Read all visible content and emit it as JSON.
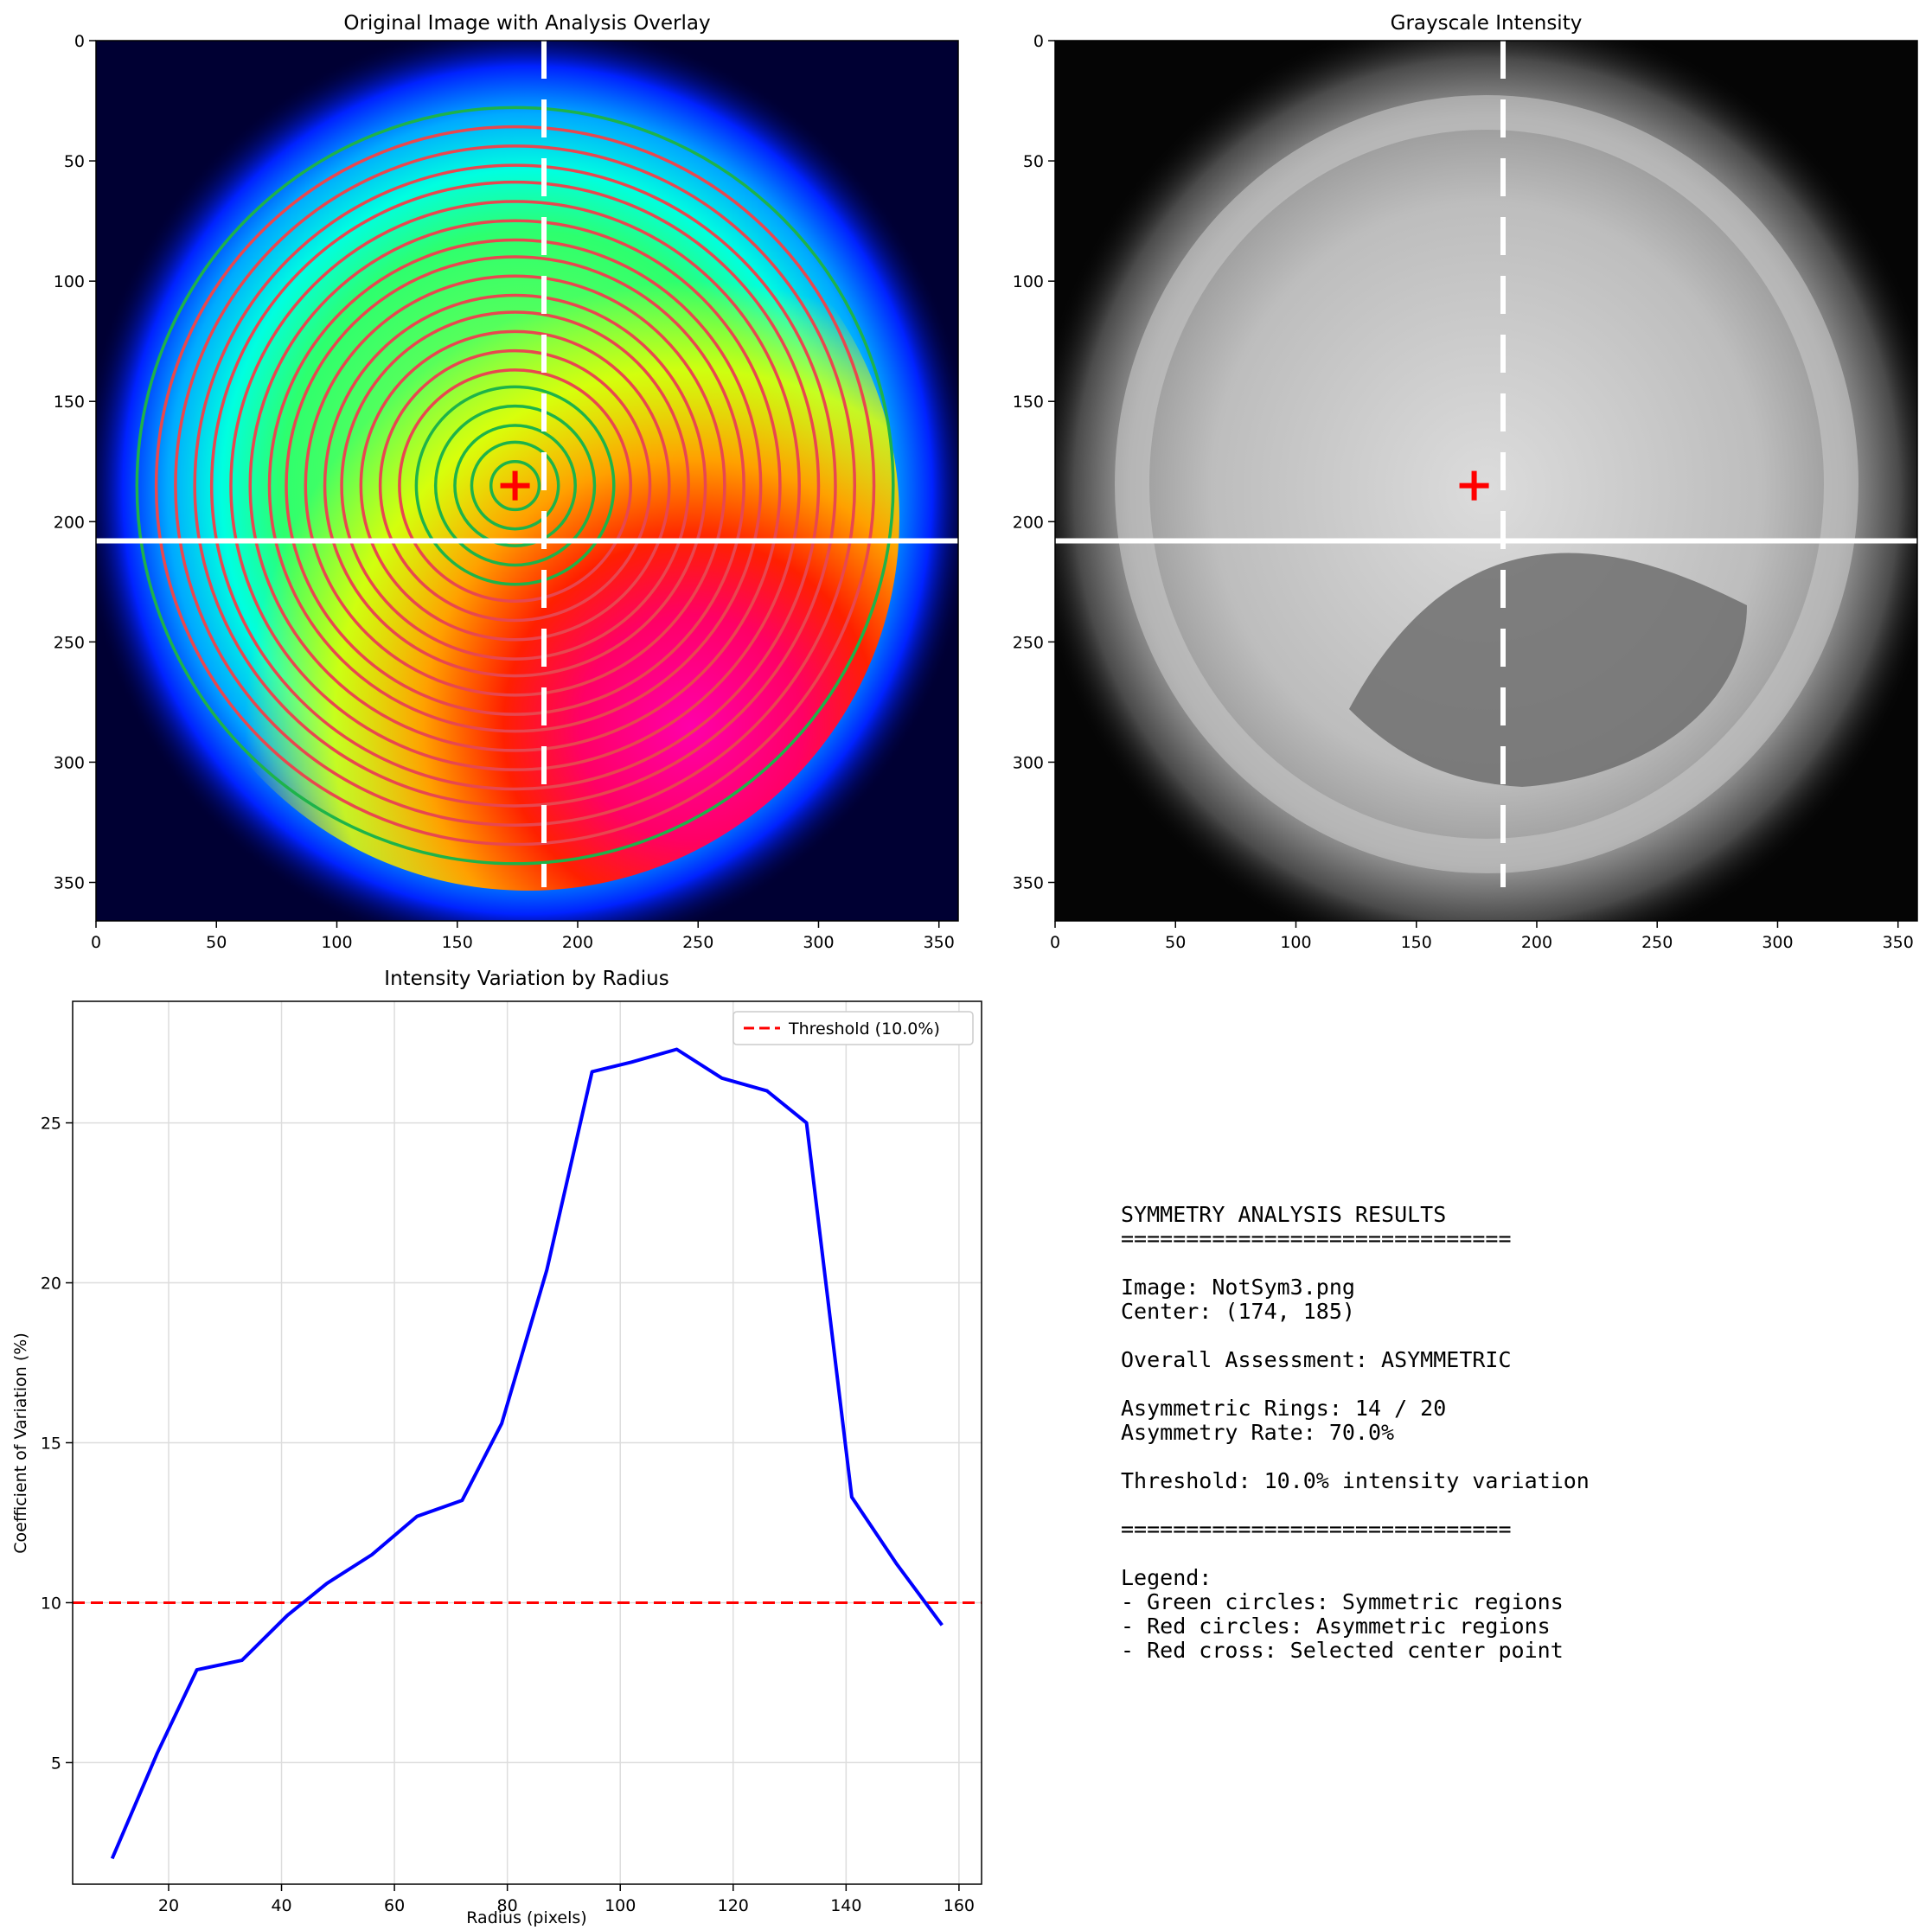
{
  "panels": {
    "overlay": {
      "title": "Original Image with Analysis Overlay",
      "x_ticks": [
        0,
        50,
        100,
        150,
        200,
        250,
        300,
        350
      ],
      "y_ticks": [
        0,
        50,
        100,
        150,
        200,
        250,
        300,
        350
      ],
      "xlim": [
        0,
        358
      ],
      "ylim": [
        366,
        0
      ],
      "center": [
        174,
        185
      ],
      "vertical_line_x": 186,
      "horizontal_line_y": 208,
      "ring_radii": [
        10,
        18,
        25,
        33,
        41,
        48,
        56,
        64,
        72,
        79,
        87,
        95,
        102,
        110,
        118,
        126,
        133,
        141,
        149,
        157
      ],
      "ring_status": [
        "symmetric",
        "symmetric",
        "symmetric",
        "symmetric",
        "symmetric",
        "asymmetric",
        "asymmetric",
        "asymmetric",
        "asymmetric",
        "asymmetric",
        "asymmetric",
        "asymmetric",
        "asymmetric",
        "asymmetric",
        "asymmetric",
        "asymmetric",
        "asymmetric",
        "asymmetric",
        "asymmetric",
        "symmetric"
      ],
      "colormap": "hsv"
    },
    "grayscale": {
      "title": "Grayscale Intensity",
      "x_ticks": [
        0,
        50,
        100,
        150,
        200,
        250,
        300,
        350
      ],
      "y_ticks": [
        0,
        50,
        100,
        150,
        200,
        250,
        300,
        350
      ],
      "xlim": [
        0,
        358
      ],
      "ylim": [
        366,
        0
      ],
      "center": [
        174,
        185
      ],
      "vertical_line_x": 186,
      "horizontal_line_y": 208,
      "colormap": "gray"
    }
  },
  "chart_data": {
    "type": "line",
    "title": "Intensity Variation by Radius",
    "xlabel": "Radius (pixels)",
    "ylabel": "Coefficient of Variation (%)",
    "xlim": [
      3,
      164
    ],
    "ylim": [
      1.2,
      28.8
    ],
    "x_ticks": [
      20,
      40,
      60,
      80,
      100,
      120,
      140,
      160
    ],
    "y_ticks": [
      5,
      10,
      15,
      20,
      25
    ],
    "grid": true,
    "legend_position": "top-right",
    "series": [
      {
        "x": [
          10,
          18,
          25,
          33,
          41,
          48,
          56,
          64,
          72,
          79,
          87,
          95,
          102,
          110,
          118,
          126,
          133,
          141,
          149,
          157
        ],
        "values": [
          2.0,
          5.3,
          7.9,
          8.2,
          9.6,
          10.6,
          11.5,
          12.7,
          13.2,
          15.6,
          20.4,
          26.6,
          26.9,
          27.3,
          26.4,
          26.0,
          25.0,
          13.3,
          11.2,
          9.3
        ],
        "color": "#0000ff"
      }
    ],
    "threshold": {
      "label": "Threshold (10.0%)",
      "value": 10.0,
      "color": "#ff0000"
    }
  },
  "results": {
    "lines": [
      "SYMMETRY ANALYSIS RESULTS",
      "==============================",
      "",
      "Image: NotSym3.png",
      "Center: (174, 185)",
      "",
      "Overall Assessment: ASYMMETRIC",
      "",
      "Asymmetric Rings: 14 / 20",
      "Asymmetry Rate: 70.0%",
      "",
      "Threshold: 10.0% intensity variation",
      "",
      "==============================",
      "",
      "Legend:",
      "- Green circles: Symmetric regions",
      "- Red circles: Asymmetric regions",
      "- Red cross: Selected center point"
    ]
  }
}
